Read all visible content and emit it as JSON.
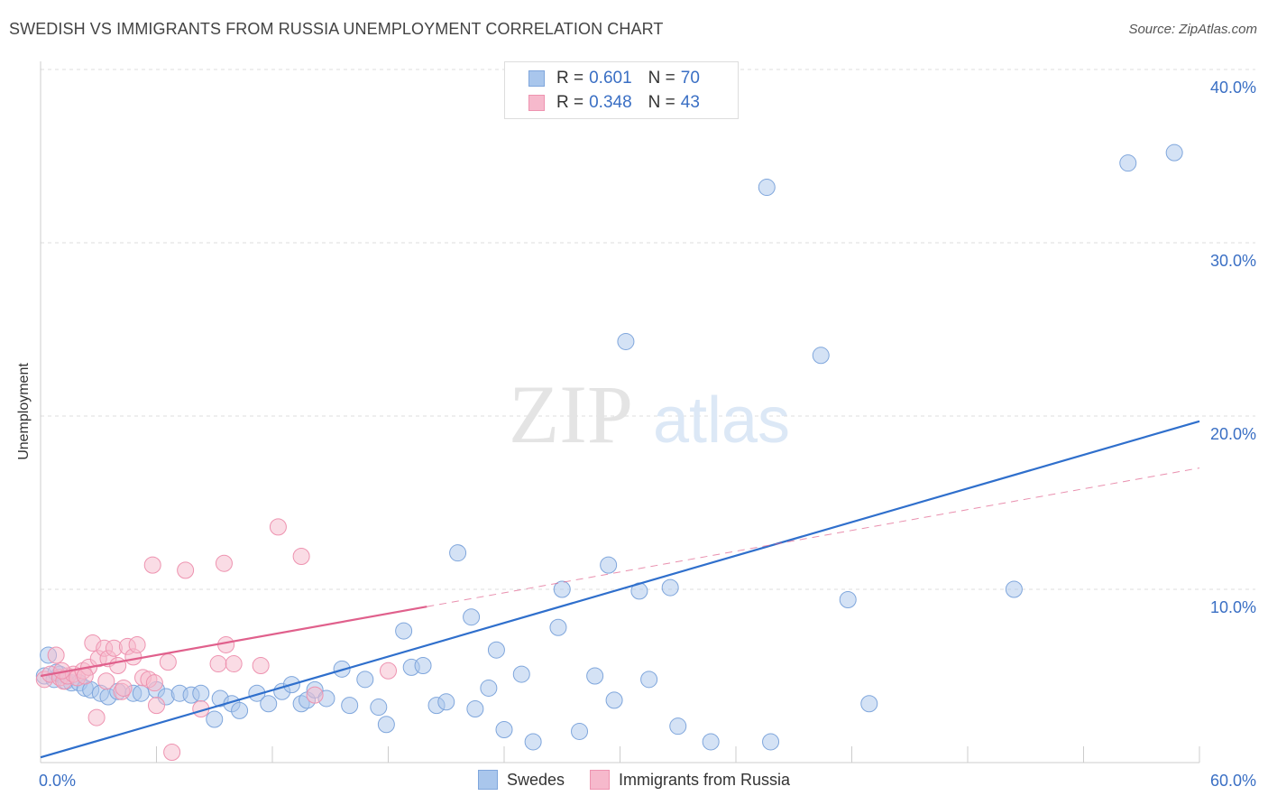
{
  "title": "SWEDISH VS IMMIGRANTS FROM RUSSIA UNEMPLOYMENT CORRELATION CHART",
  "source": "Source: ZipAtlas.com",
  "watermark": {
    "zip": "ZIP",
    "atlas": "atlas"
  },
  "colors": {
    "blue_fill": "#a9c6ec",
    "blue_stroke": "#7fa6dc",
    "blue_line": "#2f6fcc",
    "pink_fill": "#f6b9cc",
    "pink_stroke": "#ee93b0",
    "pink_line": "#e0608c",
    "tick_label": "#3a6fc4",
    "grid": "#dddddd"
  },
  "legend_top": [
    {
      "r_label": "R =",
      "r_value": "0.601",
      "n_label": "N =",
      "n_value": "70",
      "color": "#a9c6ec",
      "stroke": "#7fa6dc"
    },
    {
      "r_label": "R =",
      "r_value": "0.348",
      "n_label": "N =",
      "n_value": "43",
      "color": "#f6b9cc",
      "stroke": "#ee93b0"
    }
  ],
  "legend_bottom": [
    {
      "label": "Swedes",
      "color": "#a9c6ec",
      "stroke": "#7fa6dc"
    },
    {
      "label": "Immigrants from Russia",
      "color": "#f6b9cc",
      "stroke": "#ee93b0"
    }
  ],
  "chart_data": {
    "type": "scatter",
    "title": "SWEDISH VS IMMIGRANTS FROM RUSSIA UNEMPLOYMENT CORRELATION CHART",
    "xlabel": "",
    "ylabel": "Unemployment",
    "xlim": [
      0,
      60
    ],
    "ylim": [
      0,
      40
    ],
    "x_tick_labels": [
      "0.0%",
      "60.0%"
    ],
    "y_ticks": [
      10,
      20,
      30,
      40
    ],
    "y_tick_labels": [
      "10.0%",
      "20.0%",
      "30.0%",
      "40.0%"
    ],
    "grid": true,
    "legend_placement": "top-center",
    "series": [
      {
        "name": "Swedes",
        "points": [
          [
            0.2,
            5.0
          ],
          [
            0.4,
            6.2
          ],
          [
            0.7,
            4.8
          ],
          [
            1.0,
            5.1
          ],
          [
            1.3,
            4.7
          ],
          [
            1.6,
            4.6
          ],
          [
            2.0,
            4.6
          ],
          [
            2.3,
            4.3
          ],
          [
            2.6,
            4.2
          ],
          [
            3.1,
            4.0
          ],
          [
            3.5,
            3.8
          ],
          [
            4.0,
            4.1
          ],
          [
            4.8,
            4.0
          ],
          [
            5.2,
            4.0
          ],
          [
            6.0,
            4.2
          ],
          [
            6.5,
            3.8
          ],
          [
            7.2,
            4.0
          ],
          [
            7.8,
            3.9
          ],
          [
            8.3,
            4.0
          ],
          [
            9.0,
            2.5
          ],
          [
            9.3,
            3.7
          ],
          [
            9.9,
            3.4
          ],
          [
            10.3,
            3.0
          ],
          [
            11.2,
            4.0
          ],
          [
            11.8,
            3.4
          ],
          [
            12.5,
            4.1
          ],
          [
            13.0,
            4.5
          ],
          [
            13.5,
            3.4
          ],
          [
            13.8,
            3.6
          ],
          [
            14.2,
            4.2
          ],
          [
            14.8,
            3.7
          ],
          [
            15.6,
            5.4
          ],
          [
            16.0,
            3.3
          ],
          [
            16.8,
            4.8
          ],
          [
            17.5,
            3.2
          ],
          [
            17.9,
            2.2
          ],
          [
            18.8,
            7.6
          ],
          [
            19.2,
            5.5
          ],
          [
            19.8,
            5.6
          ],
          [
            20.5,
            3.3
          ],
          [
            21.0,
            3.5
          ],
          [
            21.6,
            12.1
          ],
          [
            22.3,
            8.4
          ],
          [
            22.5,
            3.1
          ],
          [
            23.2,
            4.3
          ],
          [
            23.6,
            6.5
          ],
          [
            24.0,
            1.9
          ],
          [
            24.9,
            5.1
          ],
          [
            25.5,
            1.2
          ],
          [
            26.8,
            7.8
          ],
          [
            27.0,
            10.0
          ],
          [
            27.9,
            1.8
          ],
          [
            28.7,
            5.0
          ],
          [
            29.4,
            11.4
          ],
          [
            29.7,
            3.6
          ],
          [
            30.3,
            24.3
          ],
          [
            31.0,
            9.9
          ],
          [
            31.5,
            4.8
          ],
          [
            32.6,
            10.1
          ],
          [
            33.0,
            2.1
          ],
          [
            34.7,
            1.2
          ],
          [
            37.6,
            33.2
          ],
          [
            37.8,
            1.2
          ],
          [
            40.4,
            23.5
          ],
          [
            41.8,
            9.4
          ],
          [
            42.9,
            3.4
          ],
          [
            50.4,
            10.0
          ],
          [
            56.3,
            34.6
          ],
          [
            58.7,
            35.2
          ],
          [
            0.8,
            5.2
          ]
        ]
      },
      {
        "name": "Immigrants from Russia",
        "points": [
          [
            0.2,
            4.8
          ],
          [
            0.5,
            5.1
          ],
          [
            0.8,
            6.2
          ],
          [
            1.0,
            4.9
          ],
          [
            1.2,
            4.7
          ],
          [
            1.4,
            5.0
          ],
          [
            1.7,
            5.1
          ],
          [
            1.9,
            4.9
          ],
          [
            2.2,
            5.3
          ],
          [
            2.5,
            5.5
          ],
          [
            2.7,
            6.9
          ],
          [
            3.0,
            6.0
          ],
          [
            3.3,
            6.6
          ],
          [
            3.5,
            6.0
          ],
          [
            3.8,
            6.6
          ],
          [
            4.0,
            5.6
          ],
          [
            4.2,
            4.1
          ],
          [
            4.5,
            6.7
          ],
          [
            4.8,
            6.1
          ],
          [
            5.0,
            6.8
          ],
          [
            5.3,
            4.9
          ],
          [
            5.6,
            4.8
          ],
          [
            5.9,
            4.6
          ],
          [
            5.8,
            11.4
          ],
          [
            6.6,
            5.8
          ],
          [
            6.8,
            0.6
          ],
          [
            7.5,
            11.1
          ],
          [
            8.3,
            3.1
          ],
          [
            9.2,
            5.7
          ],
          [
            9.5,
            11.5
          ],
          [
            9.6,
            6.8
          ],
          [
            10.0,
            5.7
          ],
          [
            11.4,
            5.6
          ],
          [
            12.3,
            13.6
          ],
          [
            13.5,
            11.9
          ],
          [
            14.2,
            3.9
          ],
          [
            18.0,
            5.3
          ],
          [
            2.9,
            2.6
          ],
          [
            3.4,
            4.7
          ],
          [
            4.3,
            4.3
          ],
          [
            6.0,
            3.3
          ],
          [
            2.3,
            5.0
          ],
          [
            1.1,
            5.3
          ]
        ]
      }
    ],
    "trend_lines": [
      {
        "series": "Swedes",
        "x": [
          0,
          60
        ],
        "y": [
          0.3,
          19.7
        ],
        "style": "solid"
      },
      {
        "series": "Immigrants from Russia",
        "x": [
          0,
          20
        ],
        "y": [
          5.0,
          9.0
        ],
        "style": "solid"
      },
      {
        "series": "Immigrants from Russia",
        "x": [
          20,
          60
        ],
        "y": [
          9.0,
          17.0
        ],
        "style": "dashed"
      }
    ]
  }
}
